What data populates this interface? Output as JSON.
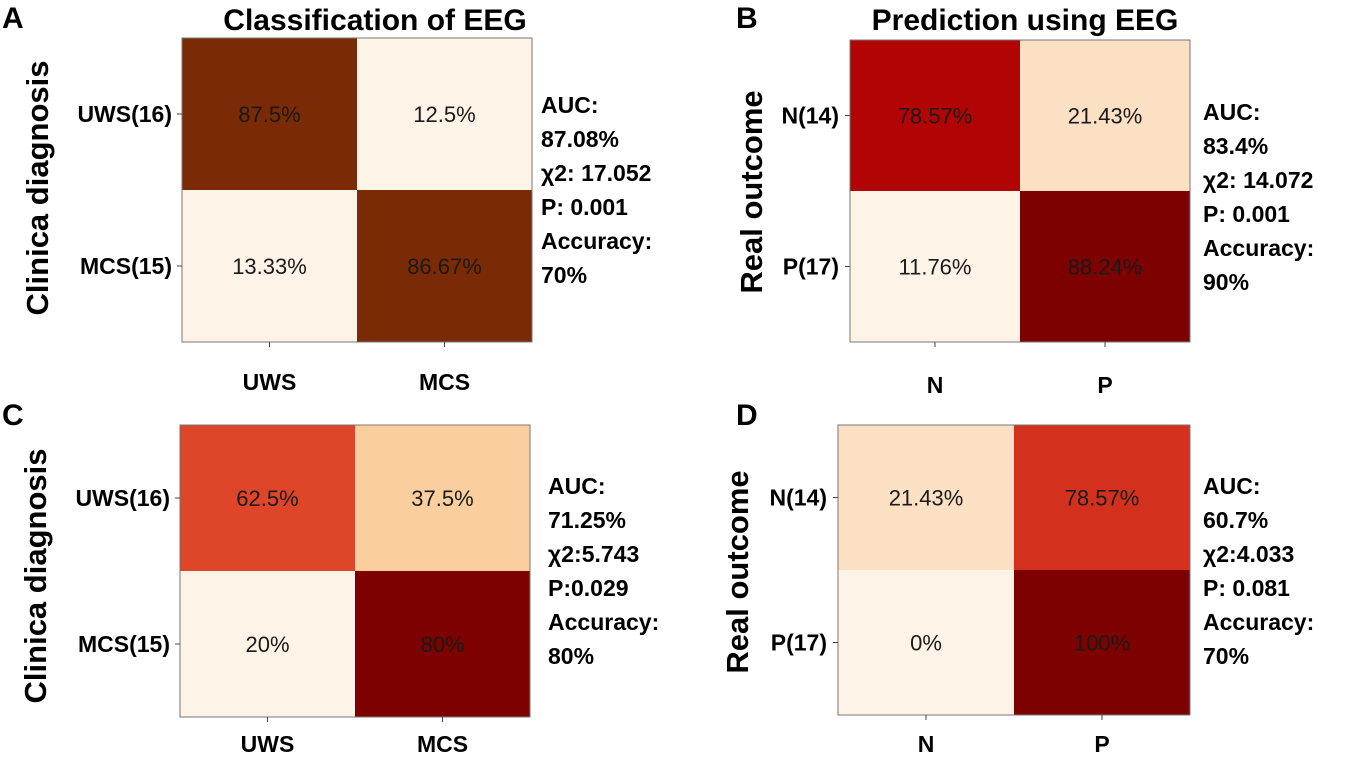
{
  "chart_data": [
    {
      "type": "heatmap",
      "panel": "A",
      "title": "Classification of EEG",
      "ylabel": "Clinica diagnosis",
      "xlabel": "",
      "rows": [
        "UWS(16)",
        "MCS(15)"
      ],
      "cols": [
        "UWS",
        "MCS"
      ],
      "values": [
        [
          87.5,
          12.5
        ],
        [
          13.33,
          86.67
        ]
      ],
      "labels": [
        [
          "87.5%",
          "12.5%"
        ],
        [
          "13.33%",
          "86.67%"
        ]
      ],
      "colors": [
        [
          "#7a2a04",
          "#fdf3e6"
        ],
        [
          "#fdf3e6",
          "#7a2a04"
        ]
      ],
      "stats": [
        "AUC:",
        "87.08%",
        "χ2: 17.052",
        "P: 0.001",
        "Accuracy:",
        "70%"
      ]
    },
    {
      "type": "heatmap",
      "panel": "B",
      "title": "Prediction using EEG",
      "ylabel": "Real outcome",
      "xlabel": "",
      "rows": [
        "N(14)",
        "P(17)"
      ],
      "cols": [
        "N",
        "P"
      ],
      "values": [
        [
          78.57,
          21.43
        ],
        [
          11.76,
          88.24
        ]
      ],
      "labels": [
        [
          "78.57%",
          "21.43%"
        ],
        [
          "11.76%",
          "88.24%"
        ]
      ],
      "colors": [
        [
          "#b20404",
          "#fbe0c3"
        ],
        [
          "#fdf3e6",
          "#7d0101"
        ]
      ],
      "stats": [
        "AUC:",
        "83.4%",
        "χ2: 14.072",
        "P: 0.001",
        "Accuracy:",
        "90%"
      ]
    },
    {
      "type": "heatmap",
      "panel": "C",
      "title": "",
      "ylabel": "Clinica diagnosis",
      "xlabel": "",
      "rows": [
        "UWS(16)",
        "MCS(15)"
      ],
      "cols": [
        "UWS",
        "MCS"
      ],
      "values": [
        [
          62.5,
          37.5
        ],
        [
          20,
          80
        ]
      ],
      "labels": [
        [
          "62.5%",
          "37.5%"
        ],
        [
          "20%",
          "80%"
        ]
      ],
      "colors": [
        [
          "#df4528",
          "#fbcf9d"
        ],
        [
          "#fdf3e6",
          "#7d0101"
        ]
      ],
      "stats": [
        "AUC:",
        "71.25%",
        "χ2:5.743",
        "P:0.029",
        "Accuracy:",
        "80%"
      ]
    },
    {
      "type": "heatmap",
      "panel": "D",
      "title": "",
      "ylabel": "Real outcome",
      "xlabel": "",
      "rows": [
        "N(14)",
        "P(17)"
      ],
      "cols": [
        "N",
        "P"
      ],
      "values": [
        [
          21.43,
          78.57
        ],
        [
          0,
          100
        ]
      ],
      "labels": [
        [
          "21.43%",
          "78.57%"
        ],
        [
          "0%",
          "100%"
        ]
      ],
      "colors": [
        [
          "#fbe0c3",
          "#d4301e"
        ],
        [
          "#fdf3e6",
          "#7d0101"
        ]
      ],
      "stats": [
        "AUC:",
        "60.7%",
        "χ2:4.033",
        "P: 0.081",
        "Accuracy:",
        "70%"
      ]
    }
  ]
}
